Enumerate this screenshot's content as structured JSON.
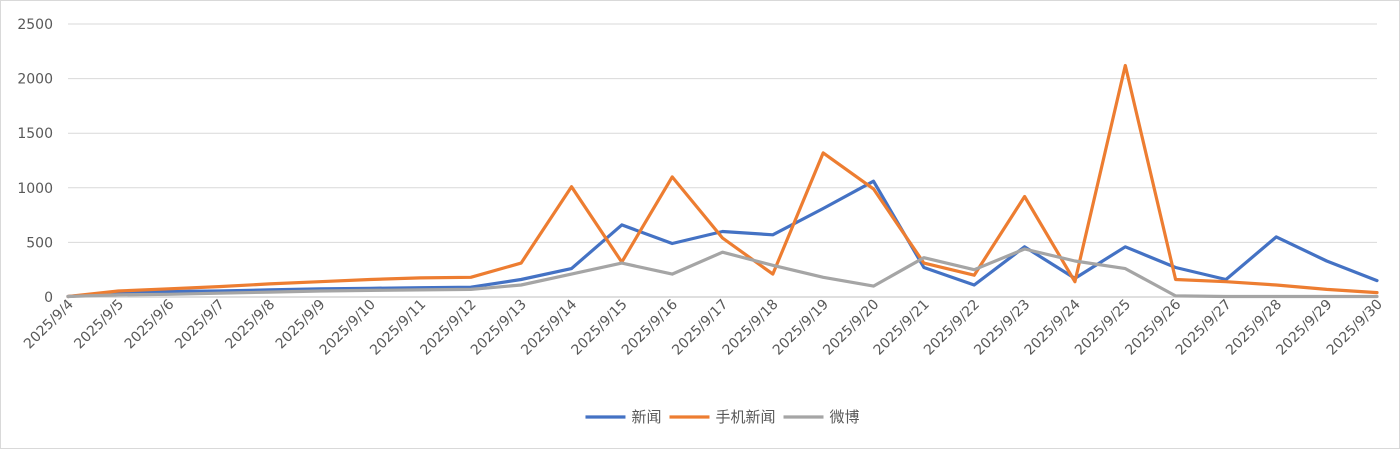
{
  "chart_data": {
    "type": "line",
    "title": "",
    "xlabel": "",
    "ylabel": "",
    "ylim": [
      0,
      2500
    ],
    "yticks": [
      0,
      500,
      1000,
      1500,
      2000,
      2500
    ],
    "grid": "horizontal",
    "legend_position": "bottom",
    "categories": [
      "2025/9/4",
      "2025/9/5",
      "2025/9/6",
      "2025/9/7",
      "2025/9/8",
      "2025/9/9",
      "2025/9/10",
      "2025/9/11",
      "2025/9/12",
      "2025/9/13",
      "2025/9/14",
      "2025/9/15",
      "2025/9/16",
      "2025/9/17",
      "2025/9/18",
      "2025/9/19",
      "2025/9/20",
      "2025/9/21",
      "2025/9/22",
      "2025/9/23",
      "2025/9/24",
      "2025/9/25",
      "2025/9/26",
      "2025/9/27",
      "2025/9/28",
      "2025/9/29",
      "2025/9/30"
    ],
    "series": [
      {
        "name": "新闻",
        "color": "#4472C4",
        "values": [
          5,
          40,
          50,
          55,
          65,
          75,
          80,
          85,
          90,
          160,
          260,
          660,
          490,
          600,
          570,
          810,
          1060,
          270,
          110,
          460,
          170,
          460,
          270,
          160,
          550,
          330,
          150
        ]
      },
      {
        "name": "手机新闻",
        "color": "#ED7D31",
        "values": [
          5,
          55,
          75,
          95,
          120,
          140,
          160,
          175,
          180,
          310,
          1010,
          320,
          1100,
          540,
          210,
          1320,
          990,
          310,
          200,
          920,
          140,
          2120,
          160,
          140,
          110,
          70,
          40
        ]
      },
      {
        "name": "微博",
        "color": "#A5A5A5",
        "values": [
          5,
          20,
          25,
          35,
          45,
          55,
          60,
          65,
          70,
          110,
          210,
          310,
          210,
          410,
          290,
          180,
          100,
          360,
          250,
          440,
          330,
          260,
          10,
          5,
          5,
          5,
          5
        ]
      }
    ]
  }
}
